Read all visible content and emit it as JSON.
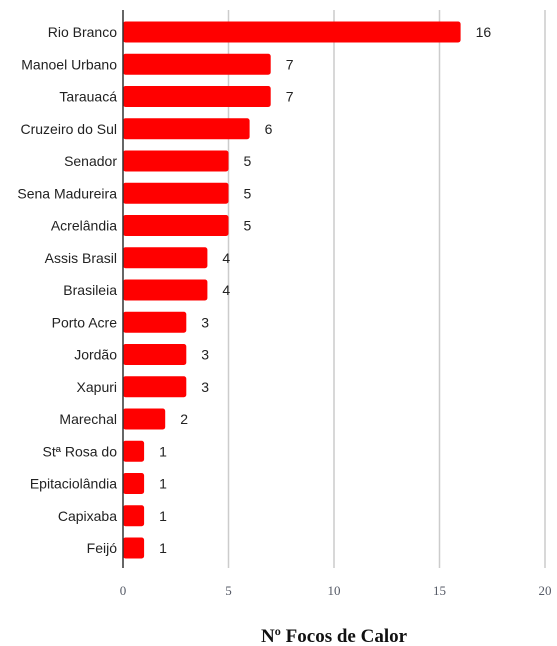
{
  "chart_data": {
    "type": "bar",
    "orientation": "horizontal",
    "categories": [
      "Rio Branco",
      "Manoel Urbano",
      "Tarauacá",
      "Cruzeiro do Sul",
      "Senador",
      "Sena Madureira",
      "Acrelândia",
      "Assis Brasil",
      "Brasileia",
      "Porto Acre",
      "Jordão",
      "Xapuri",
      "Marechal",
      "Stª Rosa do",
      "Epitaciolândia",
      "Capixaba",
      "Feijó"
    ],
    "values": [
      16,
      7,
      7,
      6,
      5,
      5,
      5,
      4,
      4,
      3,
      3,
      3,
      2,
      1,
      1,
      1,
      1
    ],
    "data_labels": [
      "16",
      "7",
      "7",
      "6",
      "5",
      "5",
      "5",
      "4",
      "4",
      "3",
      "3",
      "3",
      "2",
      "1",
      "1",
      "1",
      "1"
    ],
    "xlabel": "Nº Focos de Calor",
    "ylabel": "",
    "title": "",
    "xlim": [
      0,
      20
    ],
    "xticks": [
      0,
      5,
      10,
      15,
      20
    ],
    "xtick_labels": [
      "0",
      "5",
      "10",
      "15",
      "20"
    ],
    "grid": "vertical",
    "legend": "none",
    "colors": {
      "bar": "#ff0000",
      "grid": "#cccccc",
      "axis": "#333333"
    }
  }
}
